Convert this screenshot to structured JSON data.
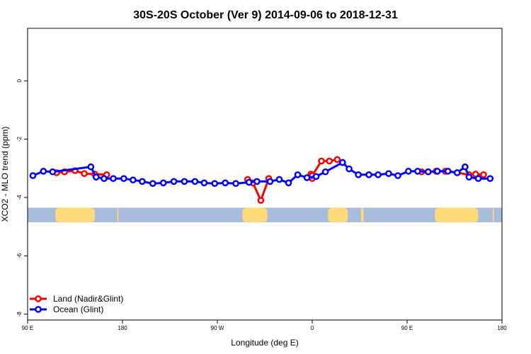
{
  "chart_data": {
    "type": "line",
    "title": "30S-20S October (Ver 9)   2014-09-06 to 2018-12-31",
    "xlabel": "Longitude (deg E)",
    "ylabel": "XCO2 - MLO trend (ppm)",
    "xlim": [
      90,
      450
    ],
    "ylim": [
      -8.2,
      1.8
    ],
    "x_ticks": [
      {
        "value": 90,
        "label": "90 E"
      },
      {
        "value": 162,
        "label": "180"
      },
      {
        "value": 234,
        "label": "90 W"
      },
      {
        "value": 306,
        "label": "0"
      },
      {
        "value": 378,
        "label": "90 E"
      },
      {
        "value": 450,
        "label": "180"
      }
    ],
    "y_ticks": [
      {
        "value": 0,
        "label": "0"
      },
      {
        "value": -2,
        "label": "-2"
      },
      {
        "value": -4,
        "label": "-4"
      },
      {
        "value": -6,
        "label": "-6"
      },
      {
        "value": -8,
        "label": "-8"
      }
    ],
    "legend": {
      "placement": "bottom-left",
      "entries": [
        {
          "label": "Land (Nadir&Glint)",
          "color": "#ff0000"
        },
        {
          "label": "Ocean (Glint)",
          "color": "#0000ff"
        }
      ]
    },
    "land_strip": {
      "y_range": [
        -4.85,
        -4.35
      ],
      "ocean_color": "#a8bcdc",
      "land_color": "#ffd97a",
      "land_spans": [
        [
          111,
          141
        ],
        [
          158,
          159
        ],
        [
          253,
          272
        ],
        [
          318,
          333
        ],
        [
          343,
          345
        ],
        [
          399,
          432
        ],
        [
          443,
          444
        ]
      ]
    },
    "series": [
      {
        "name": "Land (Nadir&Glint)",
        "color": "#ff0000",
        "segments": [
          [
            [
              112,
              -3.15
            ],
            [
              118,
              -3.12
            ],
            [
              126,
              -3.08
            ],
            [
              133,
              -3.18
            ],
            [
              141,
              -3.2
            ],
            [
              150,
              -3.22
            ]
          ],
          [
            [
              257,
              -3.38
            ],
            [
              261,
              -3.5
            ],
            [
              267,
              -4.1
            ],
            [
              273,
              -3.35
            ]
          ],
          [
            [
              306,
              -3.35
            ],
            [
              305,
              -3.2
            ],
            [
              306,
              -3.25
            ],
            [
              313,
              -2.75
            ],
            [
              319,
              -2.75
            ],
            [
              325,
              -2.7
            ],
            [
              329,
              -2.8
            ]
          ],
          [
            [
              389,
              -3.12
            ],
            [
              394,
              -3.12
            ],
            [
              400,
              -3.1
            ],
            [
              407,
              -3.1
            ],
            [
              416,
              -3.15
            ],
            [
              425,
              -3.22
            ],
            [
              430,
              -3.2
            ],
            [
              436,
              -3.22
            ]
          ]
        ]
      },
      {
        "name": "Ocean (Glint)",
        "color": "#0000ff",
        "segments": [
          [
            [
              94,
              -3.25
            ],
            [
              102,
              -3.1
            ],
            [
              109,
              -3.12
            ],
            [
              138,
              -2.95
            ],
            [
              142,
              -3.3
            ],
            [
              148,
              -3.35
            ],
            [
              155,
              -3.35
            ],
            [
              163,
              -3.35
            ],
            [
              170,
              -3.4
            ],
            [
              177,
              -3.45
            ],
            [
              185,
              -3.52
            ],
            [
              193,
              -3.5
            ],
            [
              201,
              -3.45
            ],
            [
              209,
              -3.45
            ],
            [
              217,
              -3.45
            ],
            [
              224,
              -3.5
            ],
            [
              232,
              -3.52
            ],
            [
              240,
              -3.5
            ],
            [
              248,
              -3.52
            ],
            [
              258,
              -3.48
            ],
            [
              264,
              -3.45
            ],
            [
              274,
              -3.45
            ],
            [
              281,
              -3.38
            ],
            [
              288,
              -3.5
            ],
            [
              295,
              -3.22
            ],
            [
              302,
              -3.32
            ],
            [
              309,
              -3.28
            ],
            [
              316,
              -3.12
            ],
            [
              329,
              -2.8
            ],
            [
              334,
              -3.02
            ],
            [
              341,
              -3.22
            ],
            [
              349,
              -3.22
            ],
            [
              356,
              -3.22
            ],
            [
              364,
              -3.18
            ],
            [
              371,
              -3.25
            ],
            [
              379,
              -3.1
            ],
            [
              386,
              -3.1
            ],
            [
              394,
              -3.12
            ],
            [
              401,
              -3.1
            ],
            [
              409,
              -3.1
            ],
            [
              416,
              -3.15
            ],
            [
              422,
              -2.95
            ],
            [
              425,
              -3.3
            ],
            [
              432,
              -3.35
            ],
            [
              441,
              -3.35
            ]
          ]
        ]
      }
    ]
  }
}
